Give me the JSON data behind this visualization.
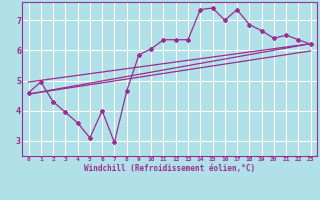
{
  "bg_color": "#b0e0e8",
  "grid_color": "#ffffff",
  "line_color": "#9b2d8e",
  "xlabel": "Windchill (Refroidissement éolien,°C)",
  "xlim": [
    -0.5,
    23.5
  ],
  "ylim": [
    2.5,
    7.6
  ],
  "yticks": [
    3,
    4,
    5,
    6,
    7
  ],
  "xticks": [
    0,
    1,
    2,
    3,
    4,
    5,
    6,
    7,
    8,
    9,
    10,
    11,
    12,
    13,
    14,
    15,
    16,
    17,
    18,
    19,
    20,
    21,
    22,
    23
  ],
  "main_x": [
    0,
    1,
    2,
    3,
    4,
    5,
    6,
    7,
    8,
    9,
    10,
    11,
    12,
    13,
    14,
    15,
    16,
    17,
    18,
    19,
    20,
    21,
    22,
    23
  ],
  "main_y": [
    4.6,
    4.95,
    4.3,
    3.95,
    3.6,
    3.1,
    4.0,
    2.95,
    4.65,
    5.85,
    6.05,
    6.35,
    6.35,
    6.35,
    7.35,
    7.4,
    7.0,
    7.35,
    6.85,
    6.65,
    6.4,
    6.5,
    6.35,
    6.2
  ],
  "line1_x": [
    0,
    23
  ],
  "line1_y": [
    4.55,
    6.22
  ],
  "line2_x": [
    0,
    23
  ],
  "line2_y": [
    4.95,
    6.22
  ],
  "line3_x": [
    0,
    23
  ],
  "line3_y": [
    4.55,
    5.98
  ]
}
